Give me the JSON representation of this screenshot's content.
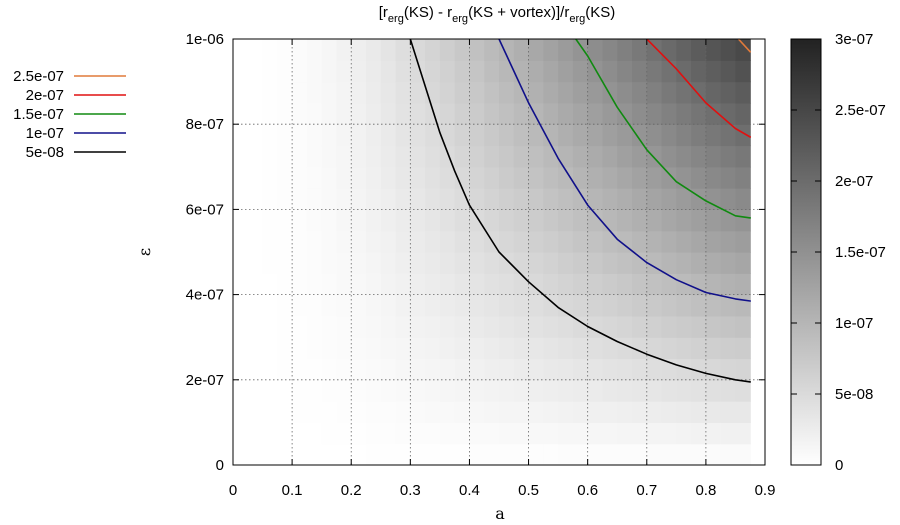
{
  "chart_data": {
    "type": "heatmap",
    "title_parts": {
      "open": "[r",
      "s1": "erg",
      "p1": "(KS) - r",
      "s2": "erg",
      "p2": "(KS + vortex)]/r",
      "s3": "erg",
      "p3": "(KS)"
    },
    "xlabel": "a",
    "ylabel": "ε",
    "xlim": [
      0,
      0.9
    ],
    "ylim": [
      0,
      1e-06
    ],
    "x_ticks": [
      "0",
      "0.1",
      "0.2",
      "0.3",
      "0.4",
      "0.5",
      "0.6",
      "0.7",
      "0.8",
      "0.9"
    ],
    "y_ticks": [
      "0",
      "2e-07",
      "4e-07",
      "6e-07",
      "8e-07",
      "1e-06"
    ],
    "colorbar": {
      "range": [
        0,
        3e-07
      ],
      "ticks": [
        "0",
        "5e-08",
        "1e-07",
        "1.5e-07",
        "2e-07",
        "2.5e-07",
        "3e-07"
      ],
      "colors": [
        "#ffffff",
        "#222222"
      ]
    },
    "data_extent": {
      "a_max": 0.875,
      "a_step": 0.025,
      "eps_steps": 20
    },
    "field_model": "value ≈ k(a) · ε, scaled so that contour 5e-08 crosses (0.4, 6.1e-07)",
    "contours": [
      {
        "level": "2.5e-07",
        "color": "#e07a3a",
        "points": [
          [
            0.855,
            1e-06
          ],
          [
            0.875,
            9.7e-07
          ]
        ]
      },
      {
        "level": "2e-07",
        "color": "#e01010",
        "points": [
          [
            0.7,
            1e-06
          ],
          [
            0.75,
            9.3e-07
          ],
          [
            0.8,
            8.5e-07
          ],
          [
            0.85,
            7.9e-07
          ],
          [
            0.875,
            7.7e-07
          ]
        ]
      },
      {
        "level": "1.5e-07",
        "color": "#108a10",
        "points": [
          [
            0.58,
            1e-06
          ],
          [
            0.6,
            9.6e-07
          ],
          [
            0.65,
            8.4e-07
          ],
          [
            0.7,
            7.4e-07
          ],
          [
            0.75,
            6.65e-07
          ],
          [
            0.8,
            6.2e-07
          ],
          [
            0.85,
            5.85e-07
          ],
          [
            0.875,
            5.8e-07
          ]
        ]
      },
      {
        "level": "1e-07",
        "color": "#10108a",
        "points": [
          [
            0.45,
            1e-06
          ],
          [
            0.5,
            8.5e-07
          ],
          [
            0.55,
            7.2e-07
          ],
          [
            0.6,
            6.1e-07
          ],
          [
            0.65,
            5.3e-07
          ],
          [
            0.7,
            4.75e-07
          ],
          [
            0.75,
            4.35e-07
          ],
          [
            0.8,
            4.05e-07
          ],
          [
            0.85,
            3.9e-07
          ],
          [
            0.875,
            3.85e-07
          ]
        ]
      },
      {
        "level": "5e-08",
        "color": "#000000",
        "points": [
          [
            0.3,
            1e-06
          ],
          [
            0.325,
            8.9e-07
          ],
          [
            0.35,
            7.8e-07
          ],
          [
            0.375,
            6.9e-07
          ],
          [
            0.4,
            6.1e-07
          ],
          [
            0.45,
            5e-07
          ],
          [
            0.5,
            4.3e-07
          ],
          [
            0.55,
            3.7e-07
          ],
          [
            0.6,
            3.25e-07
          ],
          [
            0.65,
            2.9e-07
          ],
          [
            0.7,
            2.6e-07
          ],
          [
            0.75,
            2.35e-07
          ],
          [
            0.8,
            2.15e-07
          ],
          [
            0.85,
            2e-07
          ],
          [
            0.875,
            1.95e-07
          ]
        ]
      }
    ],
    "legend": {
      "placement": "left-top",
      "entries": [
        {
          "label": "2.5e-07",
          "color": "#e07a3a"
        },
        {
          "label": "2e-07",
          "color": "#e01010"
        },
        {
          "label": "1.5e-07",
          "color": "#108a10"
        },
        {
          "label": "1e-07",
          "color": "#10108a"
        },
        {
          "label": "5e-08",
          "color": "#000000"
        }
      ]
    },
    "grid": true
  }
}
